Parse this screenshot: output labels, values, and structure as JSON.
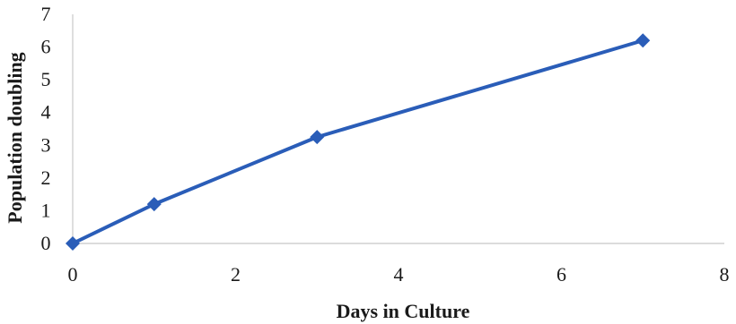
{
  "chart_data": {
    "type": "line",
    "title": "",
    "xlabel": "Days in Culture",
    "ylabel": "Population doubling",
    "xlim": [
      0,
      8
    ],
    "ylim": [
      0,
      7
    ],
    "x_ticks": [
      0,
      2,
      4,
      6,
      8
    ],
    "y_ticks": [
      0,
      1,
      2,
      3,
      4,
      5,
      6,
      7
    ],
    "grid": false,
    "legend": "none",
    "marker": "diamond",
    "series": [
      {
        "color": "#2a5db8",
        "x": [
          0,
          1,
          3,
          7
        ],
        "y": [
          0,
          1.2,
          3.25,
          6.2
        ]
      }
    ]
  }
}
